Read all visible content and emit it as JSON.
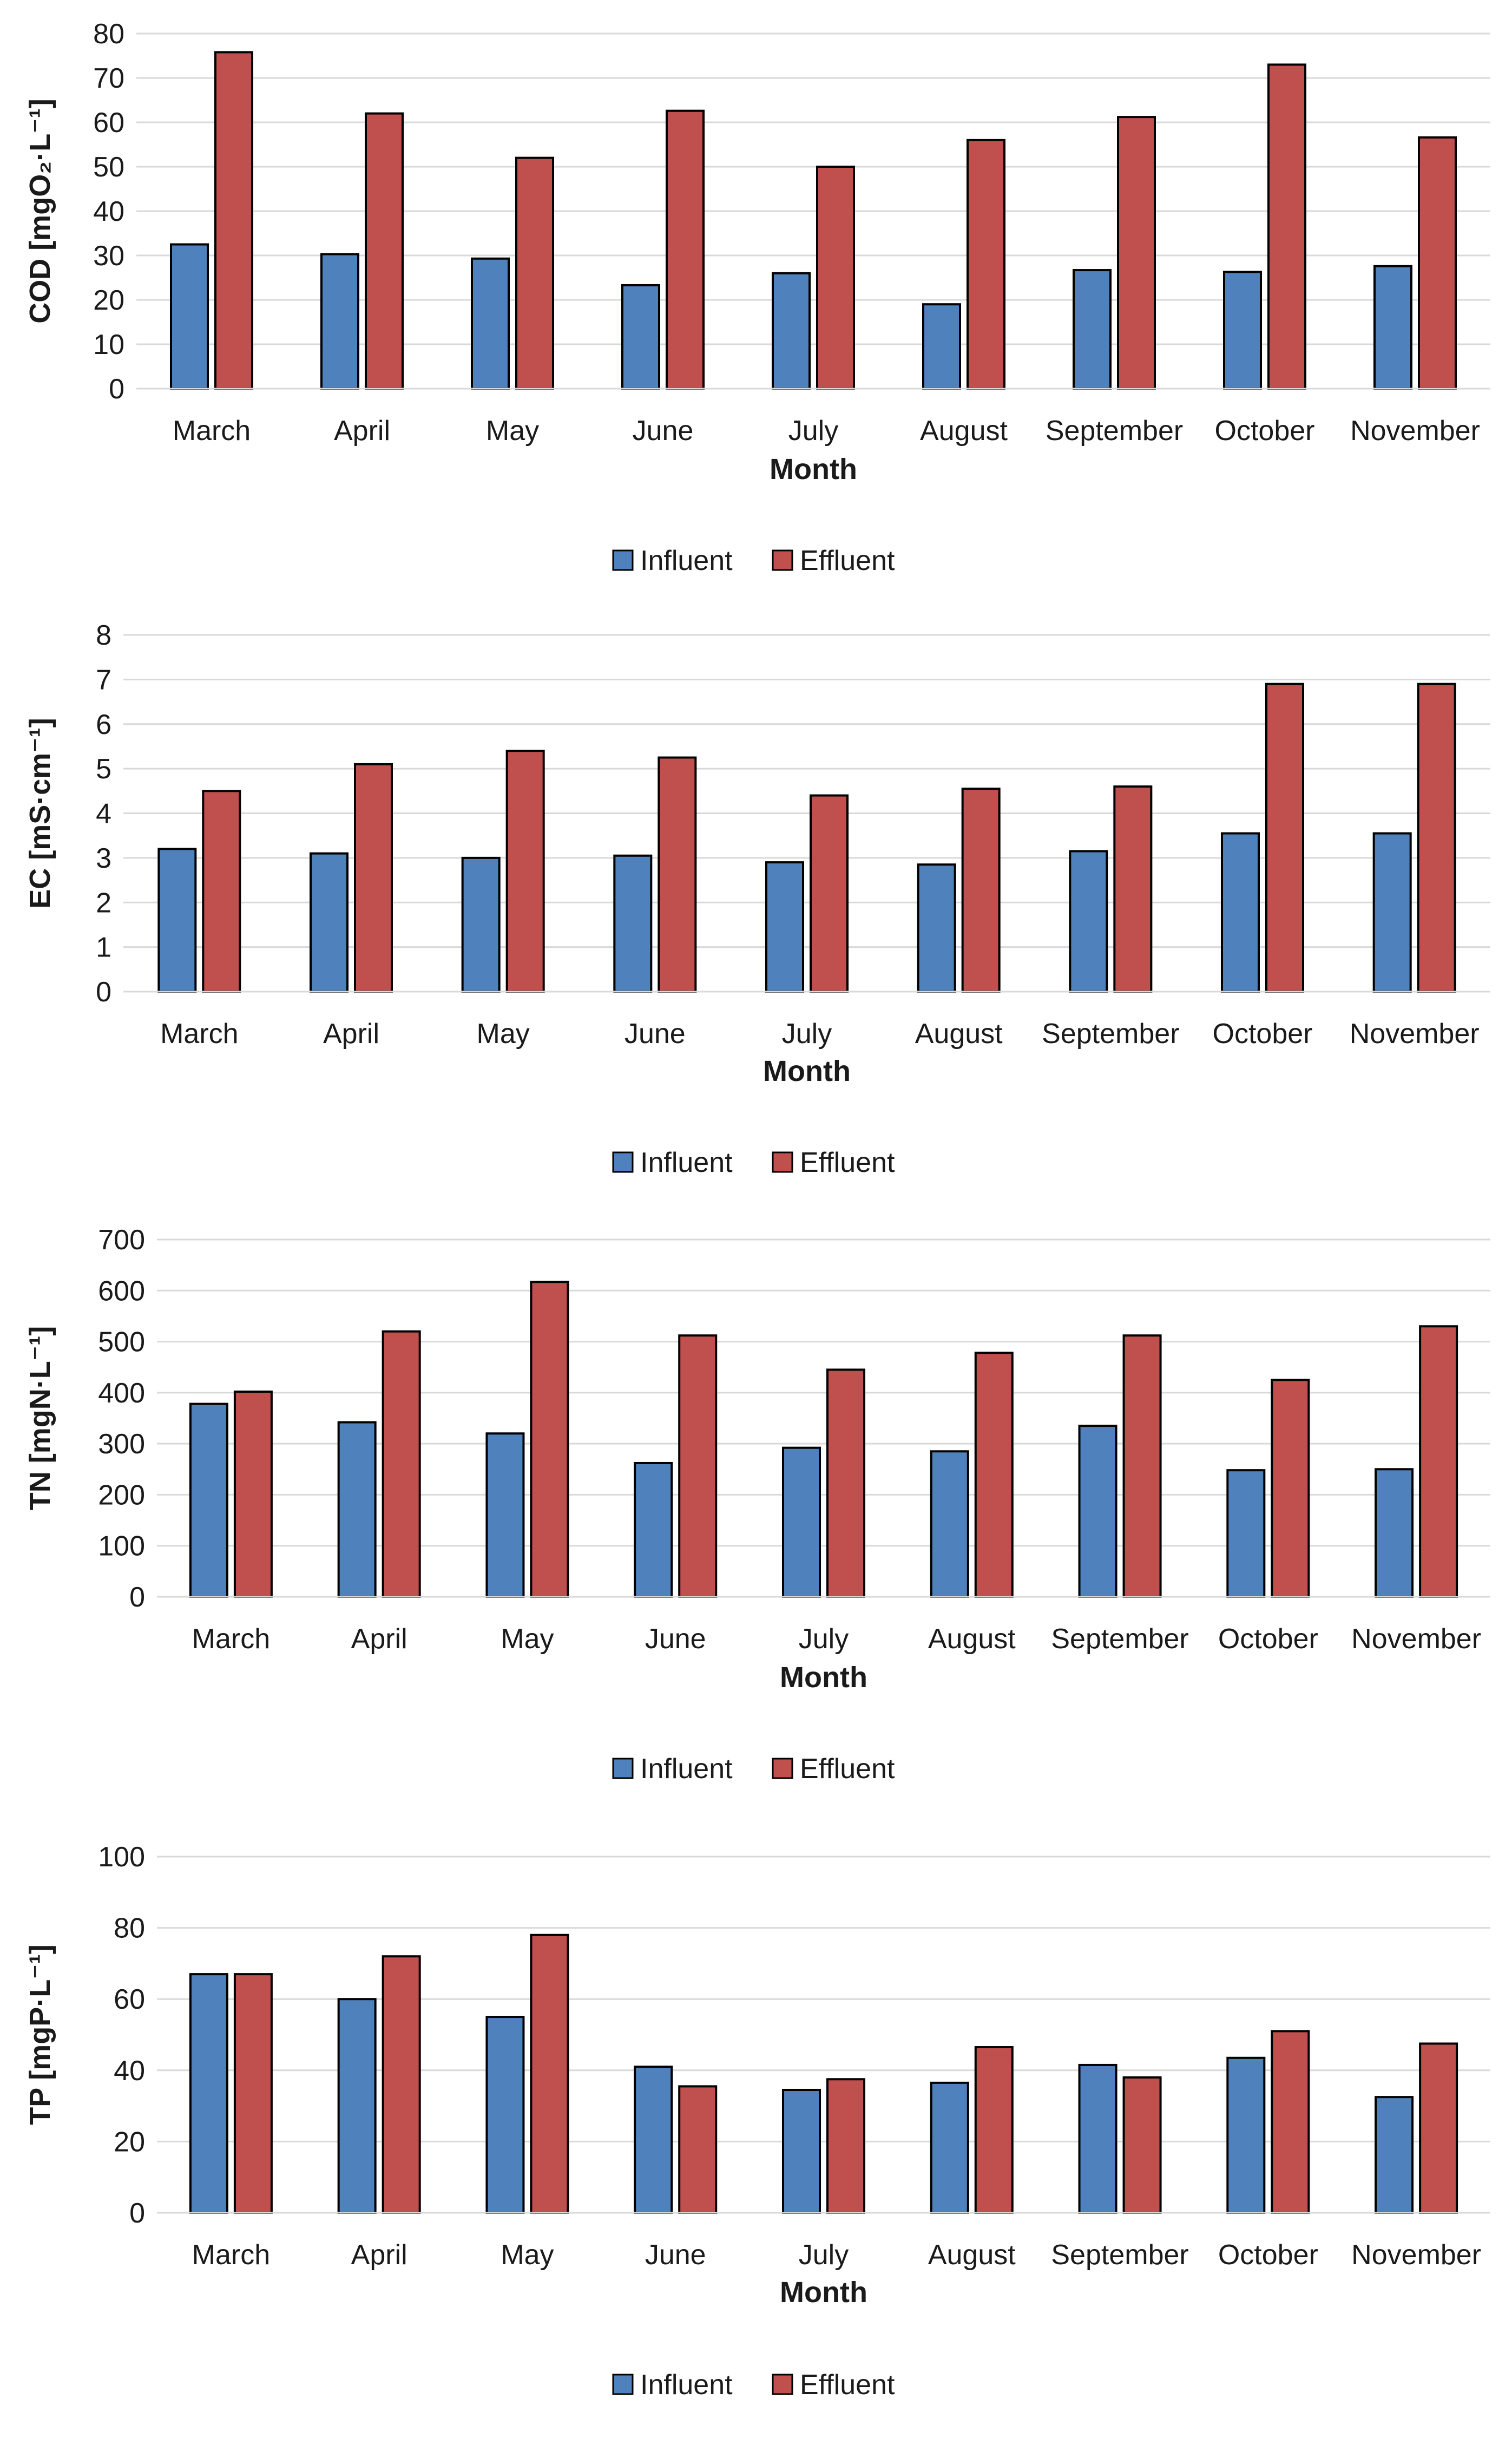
{
  "colors": {
    "influent": "#4f81bd",
    "effluent": "#c0504d",
    "grid": "#d9d9d9",
    "outline": "#000000"
  },
  "chart_data": [
    {
      "type": "bar",
      "id": "cod",
      "title": "",
      "xlabel": "Month",
      "ylabel": "COD [mgO₂·L⁻¹]",
      "ylim": [
        0,
        80
      ],
      "ytick_step": 10,
      "yticks": [
        "0",
        "10",
        "20",
        "30",
        "40",
        "50",
        "60",
        "70",
        "80"
      ],
      "categories": [
        "March",
        "April",
        "May",
        "June",
        "July",
        "August",
        "September",
        "October",
        "November"
      ],
      "legend": [
        "Influent",
        "Effluent"
      ],
      "legend_position": "bottom",
      "series": [
        {
          "name": "Influent",
          "values": [
            32.5,
            30.3,
            29.3,
            23.3,
            26,
            19,
            26.7,
            26.3,
            27.6
          ]
        },
        {
          "name": "Effluent",
          "values": [
            75.8,
            62,
            52,
            62.6,
            50,
            56,
            61.2,
            73,
            56.6
          ]
        }
      ]
    },
    {
      "type": "bar",
      "id": "ec",
      "title": "",
      "xlabel": "Month",
      "ylabel": "EC [mS·cm⁻¹]",
      "ylim": [
        0,
        8
      ],
      "ytick_step": 1,
      "yticks": [
        "0",
        "1",
        "2",
        "3",
        "4",
        "5",
        "6",
        "7",
        "8"
      ],
      "categories": [
        "March",
        "April",
        "May",
        "June",
        "July",
        "August",
        "September",
        "October",
        "November"
      ],
      "legend": [
        "Influent",
        "Effluent"
      ],
      "legend_position": "bottom",
      "series": [
        {
          "name": "Influent",
          "values": [
            3.2,
            3.1,
            3.0,
            3.05,
            2.9,
            2.85,
            3.15,
            3.55,
            3.55
          ]
        },
        {
          "name": "Effluent",
          "values": [
            4.5,
            5.1,
            5.4,
            5.25,
            4.4,
            4.55,
            4.6,
            6.9,
            6.9
          ]
        }
      ]
    },
    {
      "type": "bar",
      "id": "tn",
      "title": "",
      "xlabel": "Month",
      "ylabel": "TN [mgN·L⁻¹]",
      "ylim": [
        0,
        700
      ],
      "ytick_step": 100,
      "yticks": [
        "0",
        "100",
        "200",
        "300",
        "400",
        "500",
        "600",
        "700"
      ],
      "categories": [
        "March",
        "April",
        "May",
        "June",
        "July",
        "August",
        "September",
        "October",
        "November"
      ],
      "legend": [
        "Influent",
        "Effluent"
      ],
      "legend_position": "bottom",
      "series": [
        {
          "name": "Influent",
          "values": [
            378,
            342,
            320,
            262,
            292,
            285,
            335,
            248,
            250
          ]
        },
        {
          "name": "Effluent",
          "values": [
            402,
            520,
            617,
            512,
            445,
            478,
            512,
            425,
            530
          ]
        }
      ]
    },
    {
      "type": "bar",
      "id": "tp",
      "title": "",
      "xlabel": "Month",
      "ylabel": "TP [mgP·L⁻¹]",
      "ylim": [
        0,
        100
      ],
      "ytick_step": 20,
      "yticks": [
        "0",
        "20",
        "40",
        "60",
        "80",
        "100"
      ],
      "categories": [
        "March",
        "April",
        "May",
        "June",
        "July",
        "August",
        "September",
        "October",
        "November"
      ],
      "legend": [
        "Influent",
        "Effluent"
      ],
      "legend_position": "bottom",
      "series": [
        {
          "name": "Influent",
          "values": [
            67,
            60,
            55,
            41,
            34.5,
            36.5,
            41.5,
            43.5,
            32.5
          ]
        },
        {
          "name": "Effluent",
          "values": [
            67,
            72,
            78,
            35.5,
            37.5,
            46.5,
            38,
            51,
            47.5
          ]
        }
      ]
    }
  ]
}
